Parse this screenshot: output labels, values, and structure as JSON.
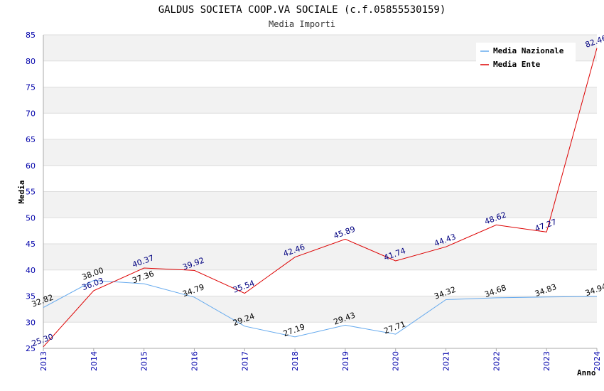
{
  "chart_data": {
    "type": "line",
    "title": "GALDUS SOCIETA COOP.VA SOCIALE (c.f.05855530159)",
    "subtitle": "Media Importi",
    "xlabel": "Anno",
    "ylabel": "Media",
    "ylim": [
      25,
      85
    ],
    "yticks": [
      25,
      30,
      35,
      40,
      45,
      50,
      55,
      60,
      65,
      70,
      75,
      80,
      85
    ],
    "categories": [
      "2013",
      "2014",
      "2015",
      "2016",
      "2017",
      "2018",
      "2019",
      "2020",
      "2021",
      "2022",
      "2023",
      "2024"
    ],
    "grid": true,
    "legend_position": "top-right",
    "series": [
      {
        "name": "Media Nazionale",
        "color": "#66aaee",
        "values": [
          32.82,
          38.0,
          37.36,
          34.79,
          29.24,
          27.19,
          29.43,
          27.71,
          34.32,
          34.68,
          34.83,
          34.94
        ],
        "labels": [
          "32.82",
          "38.00",
          "37.36",
          "34.79",
          "29.24",
          "27.19",
          "29.43",
          "27.71",
          "34.32",
          "34.68",
          "34.83",
          "34.94"
        ]
      },
      {
        "name": "Media Ente",
        "color": "#dd0000",
        "values": [
          25.3,
          36.03,
          40.37,
          39.92,
          35.54,
          42.46,
          45.89,
          41.74,
          44.43,
          48.62,
          47.27,
          82.46
        ],
        "labels": [
          "25.30",
          "36.03",
          "40.37",
          "39.92",
          "35.54",
          "42.46",
          "45.89",
          "41.74",
          "44.43",
          "48.62",
          "47.27",
          "82.46"
        ]
      }
    ]
  }
}
